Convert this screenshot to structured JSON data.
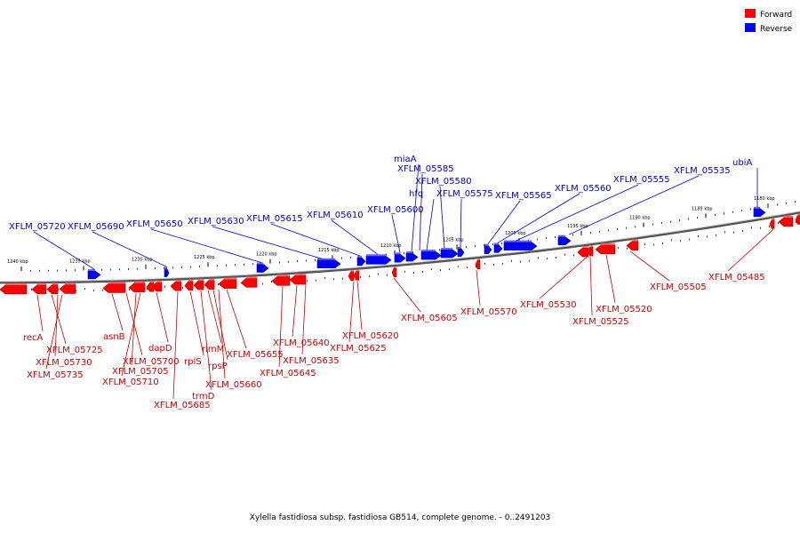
{
  "caption": "Xylella fastidiosa subsp. fastidiosa GB514, complete genome. - 0..2491203",
  "legend": [
    {
      "label": "Forward",
      "color": "#ff0000"
    },
    {
      "label": "Reverse",
      "color": "#0000ff"
    }
  ],
  "axis_ticks": [
    "1240 kbp",
    "1235 kbp",
    "1230 kbp",
    "1225 kbp",
    "1220 kbp",
    "1215 kbp",
    "1210 kbp",
    "1205 kbp",
    "1200 kbp",
    "1195 kbp",
    "1190 kbp",
    "1185 kbp",
    "1180 kbp"
  ],
  "reverse_genes": [
    "XFLM_05720",
    "XFLM_05690",
    "XFLM_05650",
    "XFLM_05630",
    "XFLM_05615",
    "XFLM_05610",
    "XFLM_05600",
    "miaA",
    "XFLM_05585",
    "hfq",
    "XFLM_05580",
    "XFLM_05575",
    "XFLM_05565",
    "XFLM_05560",
    "XFLM_05555",
    "XFLM_05535",
    "ubiA"
  ],
  "forward_genes": [
    "recA",
    "XFLM_05725",
    "XFLM_05730",
    "XFLM_05735",
    "asnB",
    "XFLM_05700",
    "XFLM_05705",
    "XFLM_05710",
    "dapD",
    "XFLM_05685",
    "rplS",
    "trmD",
    "rimM",
    "rpsP",
    "XFLM_05660",
    "XFLM_05655",
    "XFLM_05645",
    "XFLM_05640",
    "XFLM_05635",
    "XFLM_05625",
    "XFLM_05620",
    "XFLM_05605",
    "XFLM_05570",
    "XFLM_05530",
    "XFLM_05525",
    "XFLM_05520",
    "XFLM_05505",
    "XFLM_05485"
  ]
}
